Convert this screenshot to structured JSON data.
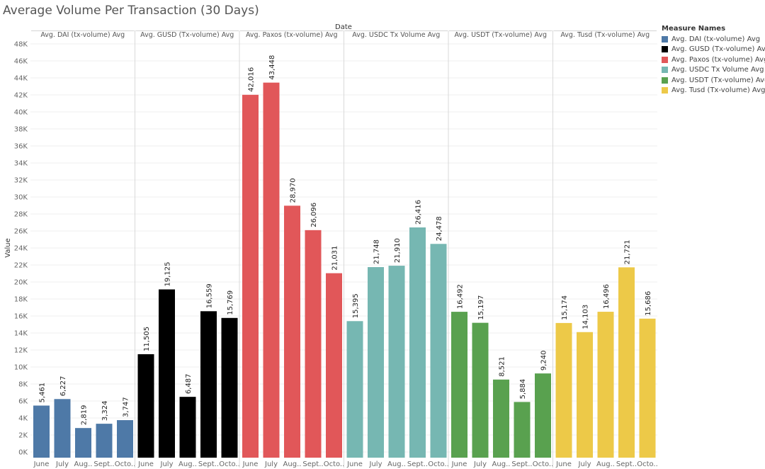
{
  "chart_data": {
    "type": "bar",
    "title": "Average Volume Per Transaction (30 Days)",
    "column_header": "Date",
    "ylabel": "Value",
    "ylim": [
      0,
      48000
    ],
    "yticks": [
      0,
      2000,
      4000,
      6000,
      8000,
      10000,
      12000,
      14000,
      16000,
      18000,
      20000,
      22000,
      24000,
      26000,
      28000,
      30000,
      32000,
      34000,
      36000,
      38000,
      40000,
      42000,
      44000,
      46000,
      48000
    ],
    "ytick_labels": [
      "0K",
      "2K",
      "4K",
      "6K",
      "8K",
      "10K",
      "12K",
      "14K",
      "16K",
      "18K",
      "20K",
      "22K",
      "24K",
      "26K",
      "28K",
      "30K",
      "32K",
      "34K",
      "36K",
      "38K",
      "40K",
      "42K",
      "44K",
      "46K",
      "48K"
    ],
    "categories": [
      "June",
      "July",
      "Aug..",
      "Sept..",
      "Octo.."
    ],
    "legend_title": "Measure Names",
    "series": [
      {
        "name": "Avg. DAI (tx-volume) Avg",
        "panel_title": "Avg. DAI (tx-volume) Avg",
        "color": "#4e79a7",
        "values": [
          5461,
          6227,
          2819,
          3324,
          3747
        ],
        "labels": [
          "5,461",
          "6,227",
          "2,819",
          "3,324",
          "3,747"
        ]
      },
      {
        "name": "Avg. GUSD (Tx-volume) Avg",
        "panel_title": "Avg. GUSD (Tx-volume) Avg",
        "color": "#000000",
        "values": [
          11505,
          19125,
          6487,
          16559,
          15769
        ],
        "labels": [
          "11,505",
          "19,125",
          "6,487",
          "16,559",
          "15,769"
        ]
      },
      {
        "name": "Avg. Paxos (tx-volume) Avg",
        "panel_title": "Avg. Paxos (tx-volume) Avg",
        "color": "#e15759",
        "values": [
          42016,
          43448,
          28970,
          26096,
          21031
        ],
        "labels": [
          "42,016",
          "43,448",
          "28,970",
          "26,096",
          "21,031"
        ]
      },
      {
        "name": "Avg. USDC Tx Volume Avg",
        "panel_title": "Avg. USDC Tx Volume Avg",
        "color": "#76b7b2",
        "values": [
          15395,
          21748,
          21910,
          26416,
          24478
        ],
        "labels": [
          "15,395",
          "21,748",
          "21,910",
          "26,416",
          "24,478"
        ]
      },
      {
        "name": "Avg. USDT (Tx-volume) Avg",
        "panel_title": "Avg. USDT (Tx-volume) Avg",
        "color": "#59a14f",
        "values": [
          16492,
          15197,
          8521,
          5884,
          9240
        ],
        "labels": [
          "16,492",
          "15,197",
          "8,521",
          "5,884",
          "9,240"
        ]
      },
      {
        "name": "Avg. Tusd (Tx-volume) Avg",
        "panel_title": "Avg. Tusd (Tx-volume) Avg",
        "color": "#edc948",
        "values": [
          15174,
          14103,
          16496,
          21721,
          15686
        ],
        "labels": [
          "15,174",
          "14,103",
          "16,496",
          "21,721",
          "15,686"
        ]
      }
    ]
  }
}
